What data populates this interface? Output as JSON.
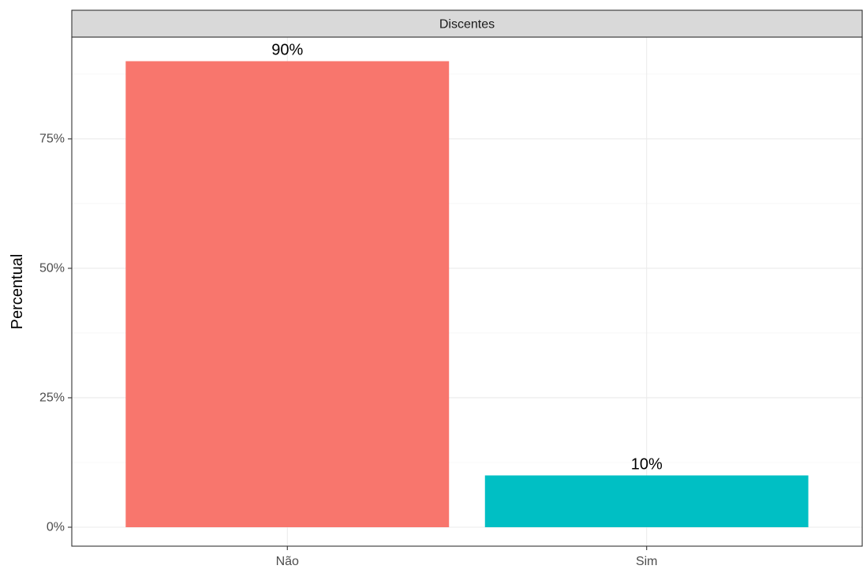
{
  "chart_data": {
    "type": "bar",
    "facet_label": "Discentes",
    "categories": [
      "Não",
      "Sim"
    ],
    "values": [
      90,
      10
    ],
    "value_labels": [
      "90%",
      "10%"
    ],
    "colors": [
      "#F8766D",
      "#00BFC4"
    ],
    "title": "",
    "xlabel": "",
    "ylabel": "Percentual",
    "ylim": [
      0,
      94.5
    ],
    "y_ticks": [
      0,
      25,
      50,
      75
    ],
    "y_tick_labels": [
      "0%",
      "25%",
      "50%",
      "75%"
    ],
    "grid": true,
    "legend": "none"
  }
}
